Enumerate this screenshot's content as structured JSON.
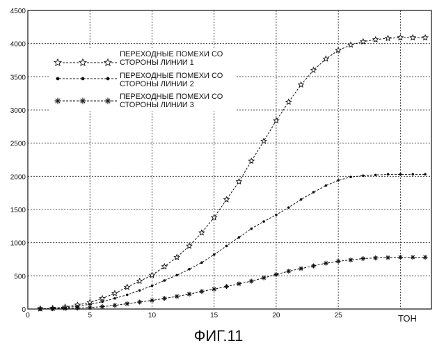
{
  "chart_data": {
    "type": "line",
    "title": "",
    "xlabel": "ТОН",
    "ylabel": "",
    "xlim": [
      0,
      32.5
    ],
    "ylim": [
      0,
      4500
    ],
    "x_ticks": [
      0,
      5,
      10,
      15,
      20,
      25
    ],
    "y_ticks": [
      0,
      500,
      1000,
      1500,
      2000,
      2500,
      3000,
      3500,
      4000,
      4500
    ],
    "grid": true,
    "legend_position": "upper-left",
    "x": [
      1,
      2,
      3,
      4,
      5,
      6,
      7,
      8,
      9,
      10,
      11,
      12,
      13,
      14,
      15,
      16,
      17,
      18,
      19,
      20,
      21,
      22,
      23,
      24,
      25,
      26,
      27,
      28,
      29,
      30,
      31,
      32
    ],
    "series": [
      {
        "name": "ПЕРЕХОДНЫЕ ПОМЕХИ СО СТОРОНЫ ЛИНИИ 1",
        "marker": "star-outline",
        "values": [
          5,
          12,
          30,
          60,
          100,
          160,
          235,
          330,
          420,
          510,
          640,
          780,
          950,
          1150,
          1380,
          1650,
          1920,
          2230,
          2530,
          2840,
          3120,
          3380,
          3600,
          3770,
          3900,
          3980,
          4030,
          4060,
          4080,
          4090,
          4090,
          4090
        ]
      },
      {
        "name": "ПЕРЕХОДНЫЕ ПОМЕХИ СО СТОРОНЫ ЛИНИИ 2",
        "marker": "dot",
        "values": [
          3,
          8,
          20,
          42,
          72,
          110,
          160,
          215,
          280,
          350,
          430,
          510,
          600,
          700,
          820,
          950,
          1080,
          1210,
          1320,
          1420,
          1530,
          1650,
          1760,
          1860,
          1940,
          1990,
          2010,
          2020,
          2030,
          2030,
          2030,
          2030
        ]
      },
      {
        "name": "ПЕРЕХОДНЫЕ ПОМЕХИ СО СТОРОНЫ ЛИНИИ 3",
        "marker": "asterisk",
        "values": [
          2,
          4,
          8,
          14,
          22,
          36,
          55,
          80,
          105,
          130,
          160,
          190,
          225,
          265,
          300,
          340,
          380,
          420,
          470,
          520,
          570,
          610,
          650,
          690,
          720,
          740,
          760,
          770,
          775,
          780,
          780,
          780
        ]
      }
    ]
  },
  "caption": "ФИГ.11"
}
